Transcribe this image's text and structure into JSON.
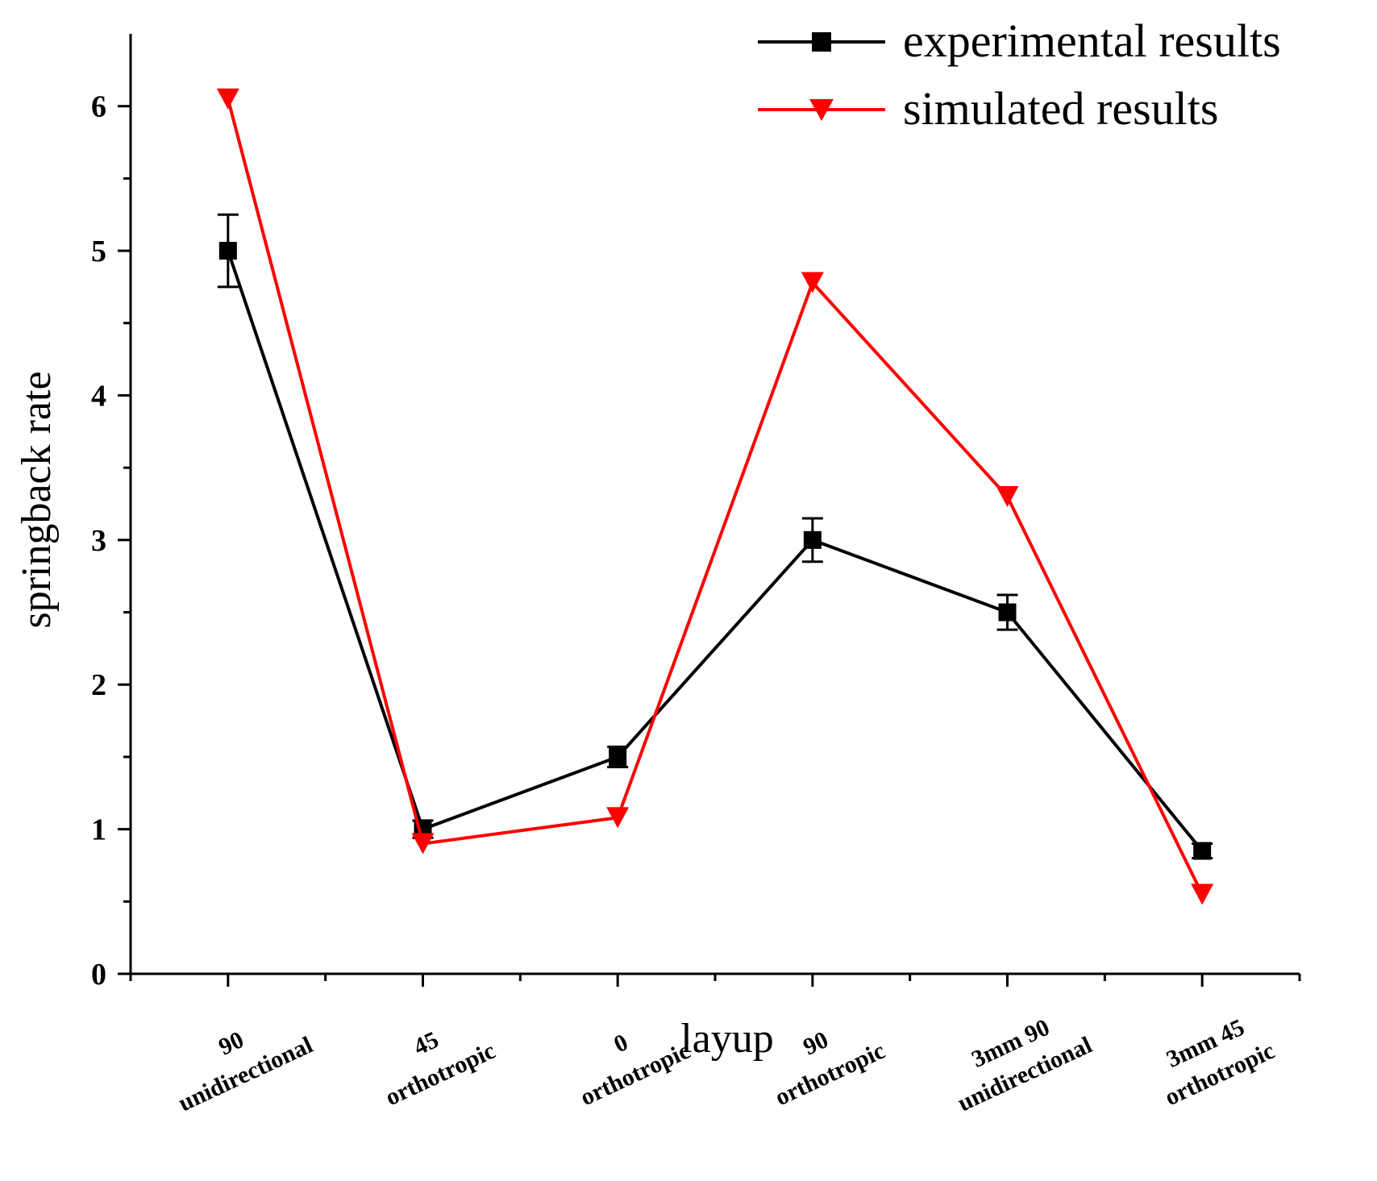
{
  "chart_data": {
    "type": "line",
    "title": "",
    "xlabel": "layup",
    "ylabel": "springback rate",
    "ylim": [
      0,
      6.5
    ],
    "yticks": [
      0,
      1,
      2,
      3,
      4,
      5,
      6
    ],
    "categories": [
      [
        "90",
        "unidirectional"
      ],
      [
        "45",
        "orthotropic"
      ],
      [
        "0",
        "orthotropic"
      ],
      [
        "90",
        "orthotropic"
      ],
      [
        "3mm 90",
        "unidirectional"
      ],
      [
        "3mm 45",
        "orthotropic"
      ]
    ],
    "series": [
      {
        "name": "experimental results",
        "color": "#000000",
        "marker": "square",
        "values": [
          5.0,
          1.0,
          1.5,
          3.0,
          2.5,
          0.85
        ],
        "errors": [
          0.25,
          0.06,
          0.07,
          0.15,
          0.12,
          0.05
        ]
      },
      {
        "name": "simulated results",
        "color": "#ff0000",
        "marker": "triangle-down",
        "values": [
          6.05,
          0.9,
          1.08,
          4.78,
          3.3,
          0.55
        ]
      }
    ],
    "legend_position": "top-right"
  }
}
